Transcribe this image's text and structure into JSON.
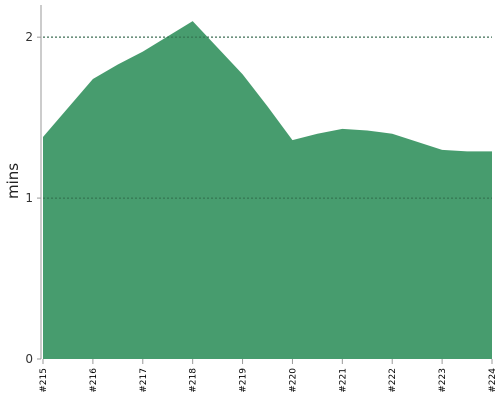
{
  "chart_data": {
    "type": "area",
    "title": "",
    "xlabel": "",
    "ylabel": "mins",
    "x": [
      "#215",
      "#216",
      "#217",
      "#218",
      "#219",
      "#220",
      "#221",
      "#222",
      "#223",
      "#224"
    ],
    "points": [
      {
        "x": 0,
        "y": 1.38
      },
      {
        "x": 1,
        "y": 1.74
      },
      {
        "x": 1.5,
        "y": 1.83
      },
      {
        "x": 2,
        "y": 1.91
      },
      {
        "x": 3,
        "y": 2.1
      },
      {
        "x": 4,
        "y": 1.77
      },
      {
        "x": 4.5,
        "y": 1.57
      },
      {
        "x": 5,
        "y": 1.36
      },
      {
        "x": 5.5,
        "y": 1.4
      },
      {
        "x": 6,
        "y": 1.43
      },
      {
        "x": 6.5,
        "y": 1.42
      },
      {
        "x": 7,
        "y": 1.4
      },
      {
        "x": 8,
        "y": 1.3
      },
      {
        "x": 8.5,
        "y": 1.29
      },
      {
        "x": 9,
        "y": 1.29
      }
    ],
    "yticks": [
      "0",
      "1",
      "2"
    ],
    "ylim": [
      0,
      2.2
    ],
    "grid": "horizontal dotted",
    "fill_color": "#479c6e"
  }
}
